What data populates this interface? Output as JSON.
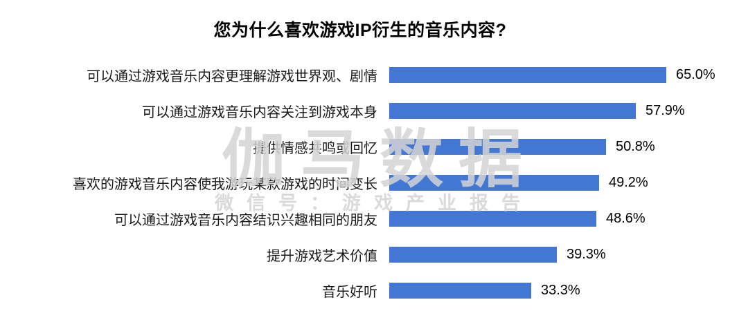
{
  "chart_data": {
    "type": "bar",
    "orientation": "horizontal",
    "title": "您为什么喜欢游戏IP衍生的音乐内容?",
    "categories": [
      "可以通过游戏音乐内容更理解游戏世界观、剧情",
      "可以通过游戏音乐内容关注到游戏本身",
      "提供情感共鸣或回忆",
      "喜欢的游戏音乐内容使我游玩某款游戏的时间变长",
      "可以通过游戏音乐内容结识兴趣相同的朋友",
      "提升游戏艺术价值",
      "音乐好听"
    ],
    "values": [
      65.0,
      57.9,
      50.8,
      49.2,
      48.6,
      39.3,
      33.3
    ],
    "display_values": [
      "65.0%",
      "57.9%",
      "50.8%",
      "49.2%",
      "48.6%",
      "39.3%",
      "33.3%"
    ],
    "xlim": [
      0,
      70
    ],
    "grid": false,
    "legend": false,
    "value_labels_position": "end",
    "bar_color": "#4377d4",
    "label_color": "#1a1a1a",
    "title_color": "#000000"
  },
  "watermark": {
    "brand": "伽马数据",
    "wechat": "微信号：游戏产业报告",
    "color": "#d3d3d3"
  }
}
